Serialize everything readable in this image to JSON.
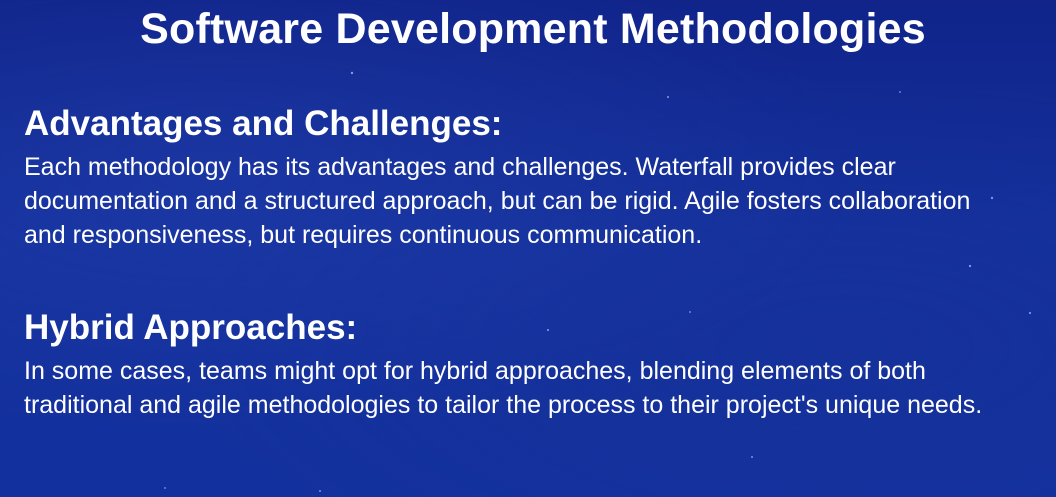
{
  "slide": {
    "title": "Software Development Methodologies",
    "sections": [
      {
        "heading": "Advantages and Challenges:",
        "body": "Each methodology has its advantages and challenges. Waterfall provides clear documentation and a structured approach, but can be rigid. Agile fosters collaboration and responsiveness, but requires continuous communication."
      },
      {
        "heading": "Hybrid Approaches:",
        "body": "In some cases, teams might opt for hybrid approaches, blending elements of both traditional and agile methodologies to tailor the process to their project's unique needs."
      }
    ]
  },
  "colors": {
    "background": "#14309c",
    "text": "#ffffff"
  }
}
